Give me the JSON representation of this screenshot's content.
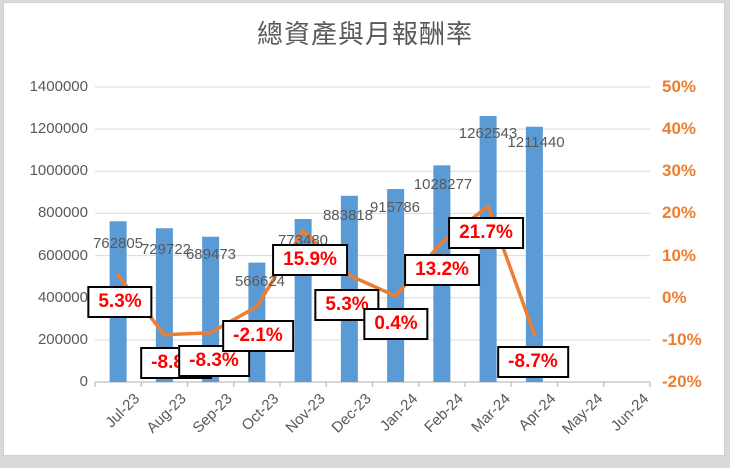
{
  "title": "總資產與月報酬率",
  "colors": {
    "bar": "#5B9BD5",
    "line": "#ED7D31",
    "right_axis_text": "#ED7D31",
    "axis_text": "#595959",
    "gridline": "#D9D9D9",
    "axis_line": "#BFBFBF",
    "pct_label_text": "#FF0000",
    "pct_label_border": "#000000",
    "pct_label_bg": "#FFFFFF"
  },
  "chart_data": {
    "type": "bar",
    "subtype": "combo-bar-line",
    "title": "總資產與月報酬率",
    "categories": [
      "Jul-23",
      "Aug-23",
      "Sep-23",
      "Oct-23",
      "Nov-23",
      "Dec-23",
      "Jan-24",
      "Feb-24",
      "Mar-24",
      "Apr-24",
      "May-24",
      "Jun-24"
    ],
    "series": [
      {
        "name": "總資產",
        "type": "bar",
        "axis": "left",
        "values": [
          762805,
          729722,
          689473,
          566624,
          773480,
          883818,
          915786,
          1028277,
          1262543,
          1211440,
          null,
          null
        ],
        "labels": [
          "762805",
          "729722",
          "689473",
          "566624",
          "773480",
          "883818",
          "915786",
          "1028277",
          "1262543",
          "1211440"
        ]
      },
      {
        "name": "月報酬率",
        "type": "line",
        "axis": "right",
        "values_pct": [
          5.3,
          -8.8,
          -8.3,
          -2.1,
          15.9,
          5.3,
          0.4,
          13.2,
          21.7,
          -8.7,
          null,
          null
        ],
        "labels": [
          "5.3%",
          "-8.8%",
          "-8.3%",
          "-2.1%",
          "15.9%",
          "5.3%",
          "0.4%",
          "13.2%",
          "21.7%",
          "-8.7%"
        ]
      }
    ],
    "left_axis": {
      "min": 0,
      "max": 1400000,
      "step": 200000,
      "tick_labels": [
        "0",
        "200000",
        "400000",
        "600000",
        "800000",
        "1000000",
        "1200000",
        "1400000"
      ]
    },
    "right_axis": {
      "min_pct": -20,
      "max_pct": 50,
      "step_pct": 10,
      "tick_labels": [
        "-20%",
        "-10%",
        "0%",
        "10%",
        "20%",
        "30%",
        "40%",
        "50%"
      ]
    },
    "grid": true,
    "legend_position": "none"
  }
}
